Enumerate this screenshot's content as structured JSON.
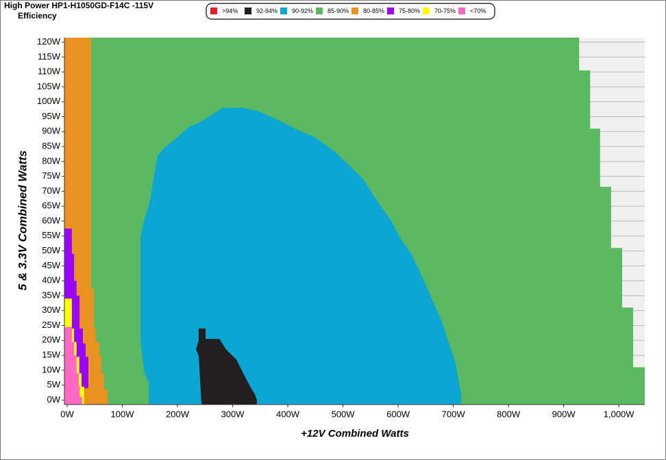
{
  "chart_data": {
    "type": "region",
    "title": "High Power HP1-H1050GD-F14C -115V",
    "subtitle": "Efficiency",
    "x_label": "+12V Combined Watts",
    "y_label": "5 & 3.3V Combined Watts",
    "xlim": [
      -5,
      1047
    ],
    "ylim": [
      -1.5,
      121.5
    ],
    "grid": true,
    "xticks": [
      {
        "value": 0,
        "label": "0W"
      },
      {
        "value": 100,
        "label": "100W"
      },
      {
        "value": 200,
        "label": "200W"
      },
      {
        "value": 300,
        "label": "300W"
      },
      {
        "value": 400,
        "label": "400W"
      },
      {
        "value": 500,
        "label": "500W"
      },
      {
        "value": 600,
        "label": "600W"
      },
      {
        "value": 700,
        "label": "700W"
      },
      {
        "value": 800,
        "label": "800W"
      },
      {
        "value": 900,
        "label": "900W"
      },
      {
        "value": 1000,
        "label": "1,000W"
      }
    ],
    "yticks": [
      {
        "value": 0,
        "label": "0W"
      },
      {
        "value": 5,
        "label": "5W"
      },
      {
        "value": 10,
        "label": "10W"
      },
      {
        "value": 15,
        "label": "15W"
      },
      {
        "value": 20,
        "label": "20W"
      },
      {
        "value": 25,
        "label": "25W"
      },
      {
        "value": 30,
        "label": "30W"
      },
      {
        "value": 35,
        "label": "35W"
      },
      {
        "value": 40,
        "label": "40W"
      },
      {
        "value": 45,
        "label": "45W"
      },
      {
        "value": 50,
        "label": "50W"
      },
      {
        "value": 55,
        "label": "55W"
      },
      {
        "value": 60,
        "label": "60W"
      },
      {
        "value": 65,
        "label": "65W"
      },
      {
        "value": 70,
        "label": "70W"
      },
      {
        "value": 75,
        "label": "75W"
      },
      {
        "value": 80,
        "label": "80W"
      },
      {
        "value": 85,
        "label": "85W"
      },
      {
        "value": 90,
        "label": "90W"
      },
      {
        "value": 95,
        "label": "95W"
      },
      {
        "value": 100,
        "label": "100W"
      },
      {
        "value": 105,
        "label": "105W"
      },
      {
        "value": 110,
        "label": "110W"
      },
      {
        "value": 115,
        "label": "115W"
      },
      {
        "value": 120,
        "label": "120W"
      }
    ],
    "series": [
      {
        "name": ">94%",
        "color": "#e8202a",
        "x": [],
        "y": []
      },
      {
        "name": "92-94%",
        "color": "#231f20",
        "x": [
          243.5,
          238.5,
          233.5,
          238.5,
          238.5,
          251,
          251,
          276,
          288,
          307,
          319,
          332,
          340,
          344,
          344
        ],
        "y": [
          -1.5,
          15,
          17,
          20,
          24,
          24,
          20.5,
          20.5,
          17,
          13.5,
          9,
          4.5,
          2,
          0,
          -1.5
        ]
      },
      {
        "name": "90-92%",
        "color": "#0ca6d2",
        "x": [
          148,
          148,
          139,
          133,
          133,
          139,
          149,
          164,
          176,
          199,
          220,
          244,
          282,
          319,
          344,
          376,
          413,
          450,
          487,
          512,
          537,
          561,
          586,
          605,
          624,
          642,
          661,
          680,
          692,
          704,
          714,
          714
        ],
        "y": [
          -1.5,
          5.5,
          10,
          20,
          55,
          60,
          66,
          82,
          84.5,
          88,
          91.5,
          93.5,
          98,
          98,
          97,
          94.5,
          91,
          88,
          83,
          78.5,
          74,
          67,
          60.5,
          54,
          49,
          42,
          34,
          26,
          19,
          12.5,
          2,
          -1.5
        ]
      },
      {
        "name": "85-90%",
        "color": "#5bb962",
        "x": [
          -5,
          1047,
          1047,
          1026,
          1026,
          1006,
          1006,
          986,
          986,
          966,
          966,
          948,
          948,
          928,
          928,
          -5
        ],
        "y": [
          -1.5,
          -1.5,
          11,
          11,
          31,
          31,
          51,
          51,
          71.5,
          71.5,
          91,
          91,
          110.5,
          110.5,
          121.5,
          121.5
        ]
      },
      {
        "name": "80-85%",
        "color": "#e79221",
        "x": [
          -5,
          43.5,
          43.5,
          48.5,
          48.5,
          52,
          52,
          58.5,
          58.5,
          62,
          62,
          67,
          67,
          73.5,
          73.5,
          -5
        ],
        "y": [
          121.5,
          121.5,
          37.5,
          37.5,
          24,
          24,
          19.5,
          19.5,
          15,
          15,
          9,
          9,
          3.5,
          3.5,
          -1.5,
          -1.5
        ]
      },
      {
        "name": "75-80%",
        "color": "#9b05ff",
        "x": [
          -5,
          8.5,
          8.5,
          12.5,
          12.5,
          17,
          17,
          22.5,
          22.5,
          28.5,
          28.5,
          33.5,
          33.5,
          38.5,
          38.5,
          -5
        ],
        "y": [
          57.5,
          57.5,
          49,
          49,
          40,
          40,
          35,
          35,
          24,
          24,
          19,
          19,
          14.5,
          14.5,
          4,
          4
        ]
      },
      {
        "name": "70-75%",
        "color": "#ffff00",
        "x": [
          -5,
          8.5,
          8.5,
          12.5,
          12.5,
          17,
          17,
          22,
          22,
          26,
          26,
          31,
          31,
          -5
        ],
        "y": [
          34,
          34,
          24,
          24,
          19.5,
          19.5,
          14.5,
          14.5,
          9,
          9,
          4.5,
          4.5,
          -1.5,
          -1.5
        ]
      },
      {
        "name": "<70%",
        "color": "#ff69c4",
        "x": [
          -5,
          8.5,
          8.5,
          12.5,
          12.5,
          17,
          17,
          21,
          21,
          23,
          23,
          27,
          27,
          -5
        ],
        "y": [
          24.5,
          24.5,
          19.5,
          19.5,
          15,
          15,
          9,
          9,
          4.5,
          4.5,
          1,
          1,
          -1.5,
          -1.5
        ]
      }
    ]
  }
}
